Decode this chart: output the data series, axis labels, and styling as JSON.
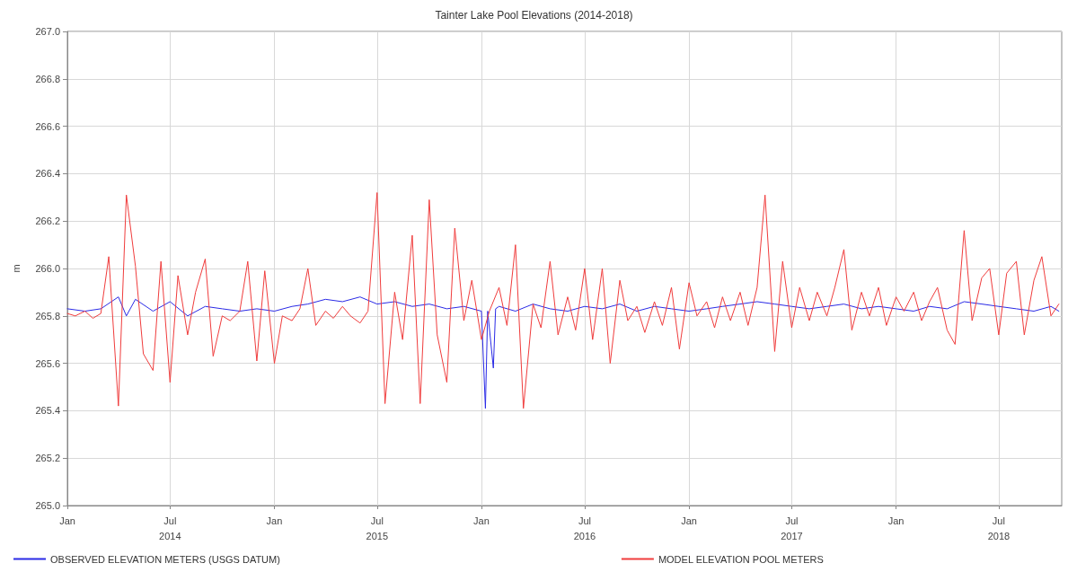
{
  "chart_data": {
    "type": "line",
    "title": "Tainter Lake Pool Elevations (2014-2018)",
    "ylabel": "m",
    "xlim": [
      "2014-01-01",
      "2018-10-20"
    ],
    "xticks": [
      {
        "value": "2014-01-01",
        "label": "Jan"
      },
      {
        "value": "2014-07-01",
        "label": "Jul\n2014"
      },
      {
        "value": "2015-01-01",
        "label": "Jan"
      },
      {
        "value": "2015-07-01",
        "label": "Jul\n2015"
      },
      {
        "value": "2016-01-01",
        "label": "Jan"
      },
      {
        "value": "2016-07-01",
        "label": "Jul\n2016"
      },
      {
        "value": "2017-01-01",
        "label": "Jan"
      },
      {
        "value": "2017-07-01",
        "label": "Jul\n2017"
      },
      {
        "value": "2018-01-01",
        "label": "Jan"
      },
      {
        "value": "2018-07-01",
        "label": "Jul\n2018"
      }
    ],
    "ylim": [
      265.0,
      267.0
    ],
    "yticks": [
      {
        "value": 265.0,
        "label": "265.0"
      },
      265.2,
      265.4,
      265.6,
      265.8,
      {
        "value": 266.0,
        "label": "266.0"
      },
      266.2,
      266.4,
      266.6,
      266.8,
      {
        "value": 267.0,
        "label": "267.0"
      }
    ],
    "grid": true,
    "legend": "bottom",
    "marker": "none",
    "line_style": "solid",
    "series": [
      {
        "name": "OBSERVED ELEVATION METERS (USGS DATUM)",
        "color": "#2a2ae6",
        "x": [
          "2014-01-01",
          "2014-02-01",
          "2014-03-01",
          "2014-04-01",
          "2014-04-15",
          "2014-05-01",
          "2014-06-01",
          "2014-07-01",
          "2014-08-01",
          "2014-09-01",
          "2014-10-01",
          "2014-11-01",
          "2014-12-01",
          "2015-01-01",
          "2015-02-01",
          "2015-03-01",
          "2015-04-01",
          "2015-05-01",
          "2015-06-01",
          "2015-07-01",
          "2015-08-01",
          "2015-09-01",
          "2015-10-01",
          "2015-11-01",
          "2015-12-01",
          "2016-01-01",
          "2016-01-08",
          "2016-01-12",
          "2016-01-22",
          "2016-01-26",
          "2016-02-01",
          "2016-03-01",
          "2016-04-01",
          "2016-05-01",
          "2016-06-01",
          "2016-07-01",
          "2016-08-01",
          "2016-09-01",
          "2016-10-01",
          "2016-11-01",
          "2016-12-01",
          "2017-01-01",
          "2017-02-01",
          "2017-03-01",
          "2017-04-01",
          "2017-05-01",
          "2017-06-01",
          "2017-07-01",
          "2017-08-01",
          "2017-09-01",
          "2017-10-01",
          "2017-11-01",
          "2017-12-01",
          "2018-01-01",
          "2018-02-01",
          "2018-03-01",
          "2018-04-01",
          "2018-05-01",
          "2018-06-01",
          "2018-07-01",
          "2018-08-01",
          "2018-09-01",
          "2018-10-01",
          "2018-10-15"
        ],
        "values": [
          265.83,
          265.82,
          265.83,
          265.88,
          265.8,
          265.87,
          265.82,
          265.86,
          265.8,
          265.84,
          265.83,
          265.82,
          265.83,
          265.82,
          265.84,
          265.85,
          265.87,
          265.86,
          265.88,
          265.85,
          265.86,
          265.84,
          265.85,
          265.83,
          265.84,
          265.82,
          265.41,
          265.82,
          265.58,
          265.83,
          265.84,
          265.82,
          265.85,
          265.83,
          265.82,
          265.84,
          265.83,
          265.85,
          265.82,
          265.84,
          265.83,
          265.82,
          265.83,
          265.84,
          265.85,
          265.86,
          265.85,
          265.84,
          265.83,
          265.84,
          265.85,
          265.83,
          265.84,
          265.83,
          265.82,
          265.84,
          265.83,
          265.86,
          265.85,
          265.84,
          265.83,
          265.82,
          265.84,
          265.82
        ]
      },
      {
        "name": "MODEL ELEVATION POOL METERS",
        "color": "#f03c3c",
        "x": [
          "2014-01-01",
          "2014-01-15",
          "2014-02-01",
          "2014-02-15",
          "2014-03-01",
          "2014-03-15",
          "2014-04-01",
          "2014-04-15",
          "2014-05-01",
          "2014-05-15",
          "2014-06-01",
          "2014-06-15",
          "2014-07-01",
          "2014-07-15",
          "2014-08-01",
          "2014-08-15",
          "2014-09-01",
          "2014-09-15",
          "2014-10-01",
          "2014-10-15",
          "2014-11-01",
          "2014-11-15",
          "2014-12-01",
          "2014-12-15",
          "2015-01-01",
          "2015-01-15",
          "2015-02-01",
          "2015-02-15",
          "2015-03-01",
          "2015-03-15",
          "2015-04-01",
          "2015-04-15",
          "2015-05-01",
          "2015-05-15",
          "2015-06-01",
          "2015-06-15",
          "2015-07-01",
          "2015-07-15",
          "2015-08-01",
          "2015-08-15",
          "2015-09-01",
          "2015-09-15",
          "2015-10-01",
          "2015-10-15",
          "2015-11-01",
          "2015-11-15",
          "2015-12-01",
          "2015-12-15",
          "2016-01-01",
          "2016-01-15",
          "2016-02-01",
          "2016-02-15",
          "2016-03-01",
          "2016-03-15",
          "2016-04-01",
          "2016-04-15",
          "2016-05-01",
          "2016-05-15",
          "2016-06-01",
          "2016-06-15",
          "2016-07-01",
          "2016-07-15",
          "2016-08-01",
          "2016-08-15",
          "2016-09-01",
          "2016-09-15",
          "2016-10-01",
          "2016-10-15",
          "2016-11-01",
          "2016-11-15",
          "2016-12-01",
          "2016-12-15",
          "2017-01-01",
          "2017-01-15",
          "2017-02-01",
          "2017-02-15",
          "2017-03-01",
          "2017-03-15",
          "2017-04-01",
          "2017-04-15",
          "2017-05-01",
          "2017-05-15",
          "2017-06-01",
          "2017-06-15",
          "2017-07-01",
          "2017-07-15",
          "2017-08-01",
          "2017-08-15",
          "2017-09-01",
          "2017-09-15",
          "2017-10-01",
          "2017-10-15",
          "2017-11-01",
          "2017-11-15",
          "2017-12-01",
          "2017-12-15",
          "2018-01-01",
          "2018-01-15",
          "2018-02-01",
          "2018-02-15",
          "2018-03-01",
          "2018-03-15",
          "2018-04-01",
          "2018-04-15",
          "2018-05-01",
          "2018-05-15",
          "2018-06-01",
          "2018-06-15",
          "2018-07-01",
          "2018-07-15",
          "2018-08-01",
          "2018-08-15",
          "2018-09-01",
          "2018-09-15",
          "2018-10-01",
          "2018-10-15"
        ],
        "values": [
          265.81,
          265.8,
          265.82,
          265.79,
          265.81,
          266.05,
          265.42,
          266.31,
          266.01,
          265.64,
          265.57,
          266.03,
          265.52,
          265.97,
          265.72,
          265.9,
          266.04,
          265.63,
          265.8,
          265.78,
          265.82,
          266.03,
          265.61,
          265.99,
          265.6,
          265.8,
          265.78,
          265.83,
          266.0,
          265.76,
          265.82,
          265.79,
          265.84,
          265.8,
          265.77,
          265.82,
          266.32,
          265.43,
          265.9,
          265.7,
          266.14,
          265.43,
          266.29,
          265.72,
          265.52,
          266.17,
          265.78,
          265.95,
          265.7,
          265.82,
          265.92,
          265.76,
          266.1,
          265.41,
          265.85,
          265.75,
          266.03,
          265.72,
          265.88,
          265.74,
          266.0,
          265.7,
          266.0,
          265.6,
          265.95,
          265.78,
          265.84,
          265.73,
          265.86,
          265.76,
          265.92,
          265.66,
          265.94,
          265.8,
          265.86,
          265.75,
          265.88,
          265.78,
          265.9,
          265.76,
          265.92,
          266.31,
          265.65,
          266.03,
          265.75,
          265.92,
          265.78,
          265.9,
          265.8,
          265.92,
          266.08,
          265.74,
          265.9,
          265.8,
          265.92,
          265.76,
          265.88,
          265.82,
          265.9,
          265.78,
          265.86,
          265.92,
          265.74,
          265.68,
          266.16,
          265.78,
          265.96,
          266.0,
          265.72,
          265.98,
          266.03,
          265.72,
          265.95,
          266.05,
          265.8,
          265.85
        ]
      }
    ]
  }
}
